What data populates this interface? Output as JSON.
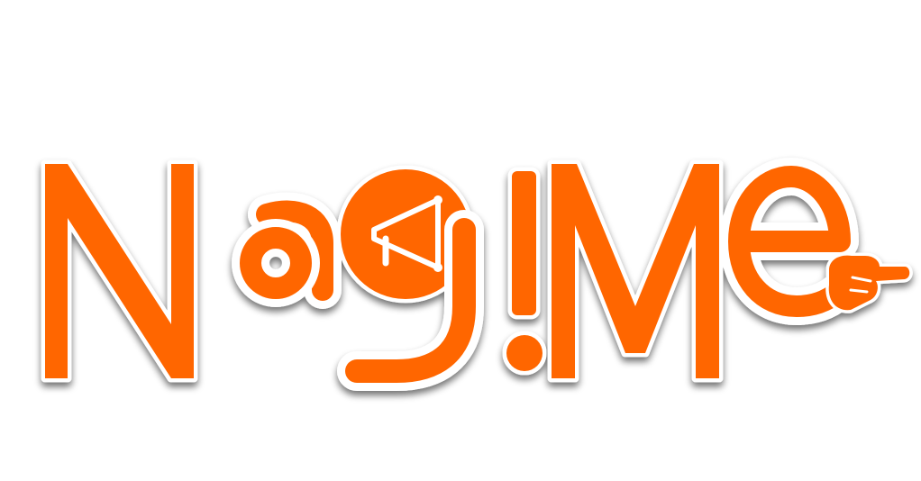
{
  "logo": {
    "wordmark": "NagMe",
    "letters": [
      "N",
      "a",
      "g",
      "M",
      "e"
    ],
    "icons": [
      "megaphone-icon",
      "exclamation-mark-icon",
      "pointing-hand-icon"
    ],
    "colors": {
      "primary": "#ff6600",
      "outline": "#ffffff",
      "shadow": "#7a7a7a",
      "background": "#ffffff"
    }
  }
}
